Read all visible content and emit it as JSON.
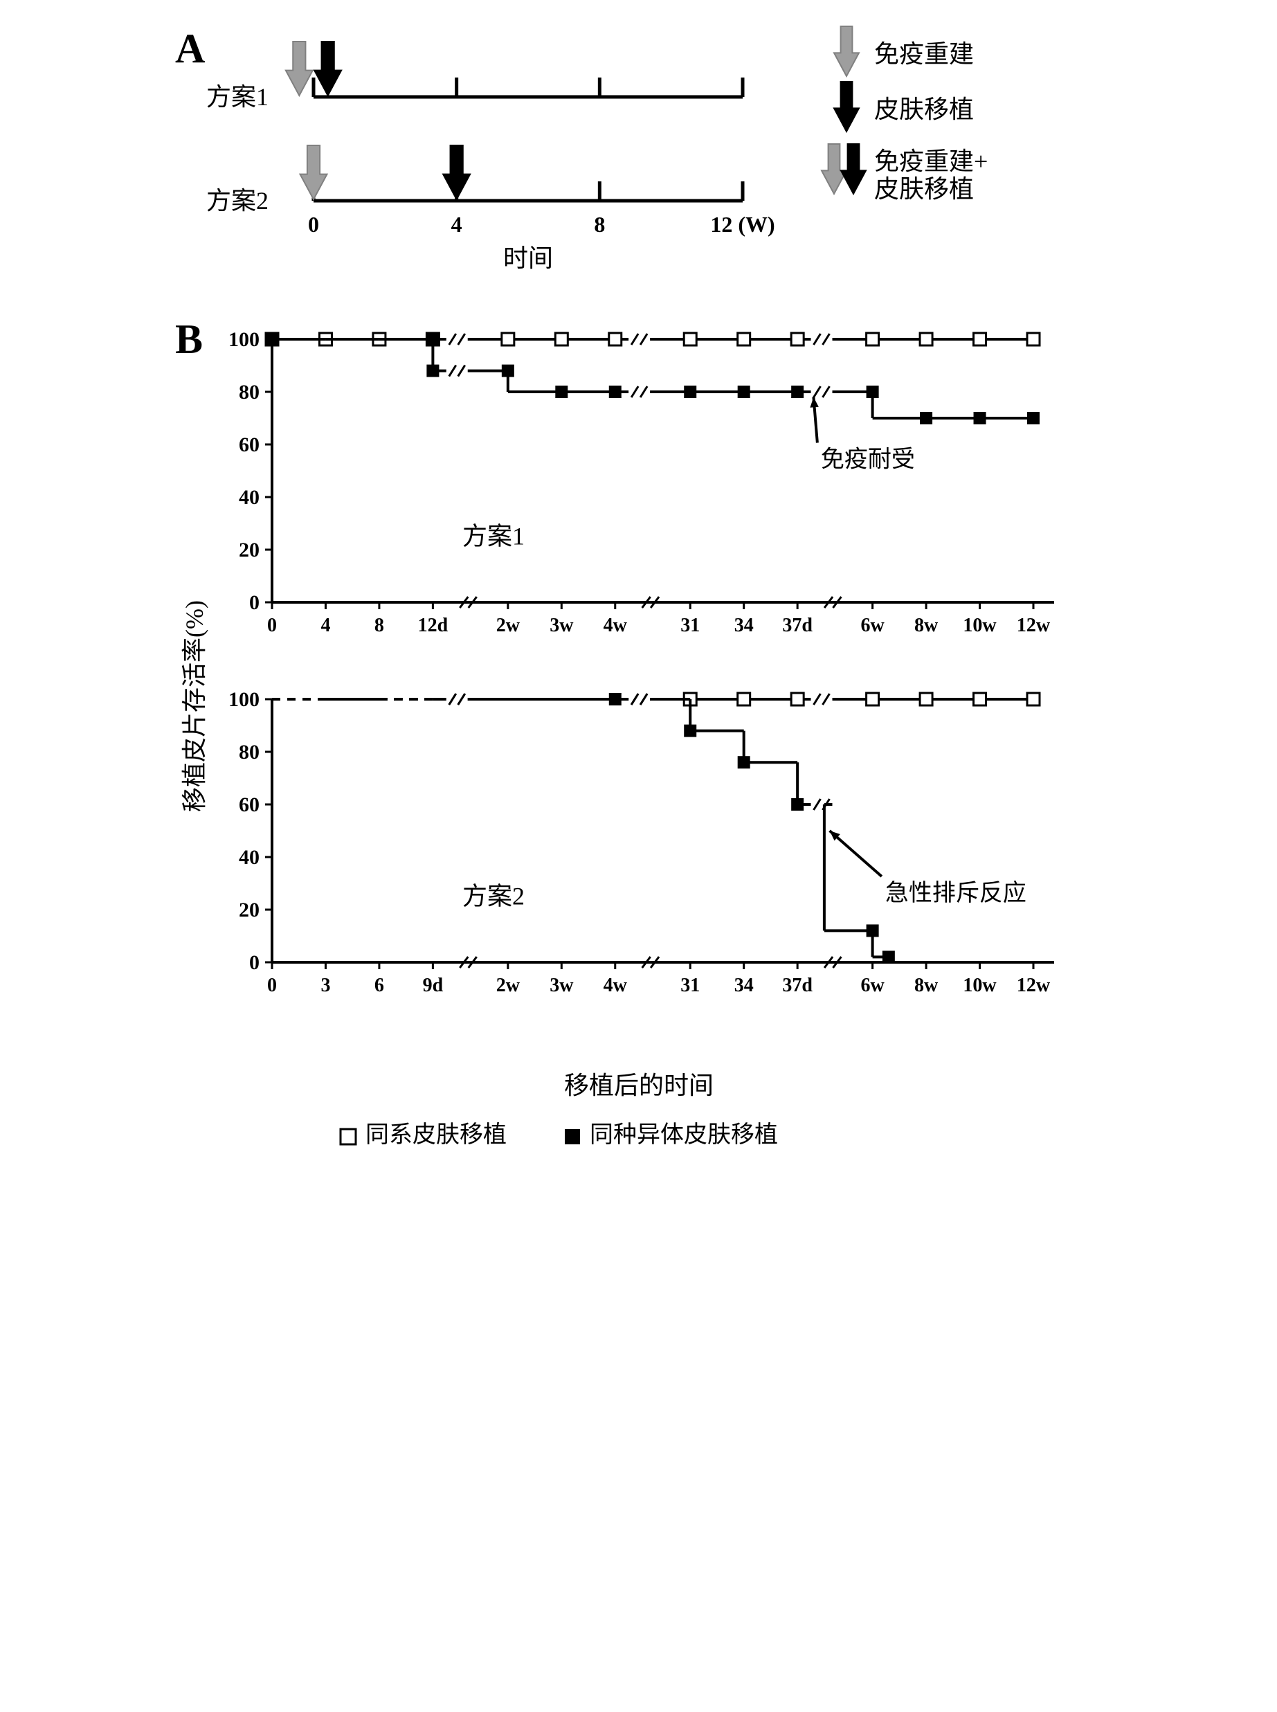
{
  "panelA": {
    "label": "A",
    "label_fontsize": 60,
    "row_labels": [
      "方案1",
      "方案2"
    ],
    "row_label_fontsize": 36,
    "x_ticks": [
      0,
      4,
      8,
      12
    ],
    "x_tick_labels": [
      "0",
      "4",
      "8",
      "12 (W)"
    ],
    "x_tick_fontsize": 32,
    "x_axis_label": "时间",
    "x_axis_label_fontsize": 36,
    "timeline_color": "#000000",
    "timeline_width": 5,
    "tick_height": 28,
    "arrow_defs": {
      "immune": {
        "color_fill": "#9e9e9e",
        "color_stroke": "#808080",
        "label": "免疫重建"
      },
      "skin": {
        "color_fill": "#000000",
        "color_stroke": "#000000",
        "label": "皮肤移植"
      },
      "both": {
        "label": "免疫重建+\n皮肤移植"
      }
    },
    "legend_fontsize": 36,
    "row1_arrows": [
      {
        "type": "immune",
        "x": -0.4
      },
      {
        "type": "skin",
        "x": 0.4
      }
    ],
    "row2_arrows": [
      {
        "type": "immune",
        "x": 0
      },
      {
        "type": "skin",
        "x": 4
      }
    ]
  },
  "panelB": {
    "label": "B",
    "label_fontsize": 60,
    "y_label": "移植皮片存活率(%)",
    "y_label_fontsize": 36,
    "x_label": "移植后的时间",
    "x_label_fontsize": 36,
    "chart1": {
      "title": "方案1",
      "title_fontsize": 36,
      "x_tick_labels": [
        "0",
        "4",
        "8",
        "12d",
        "2w",
        "3w",
        "4w",
        "31",
        "34",
        "37d",
        "6w",
        "8w",
        "10w",
        "12w"
      ],
      "x_tick_fontsize": 28,
      "y_ticks": [
        0,
        20,
        40,
        60,
        80,
        100
      ],
      "y_tick_fontsize": 30,
      "breaks_after_index": [
        3,
        6,
        9
      ],
      "syngeneic": {
        "marker": "open-square",
        "marker_size": 18,
        "line_color": "#000000",
        "line_width": 4,
        "dashed_until_index": null,
        "points": [
          [
            0,
            100
          ],
          [
            1,
            100
          ],
          [
            2,
            100
          ],
          [
            3,
            100
          ],
          [
            4,
            100
          ],
          [
            5,
            100
          ],
          [
            6,
            100
          ],
          [
            7,
            100
          ],
          [
            8,
            100
          ],
          [
            9,
            100
          ],
          [
            10,
            100
          ],
          [
            11,
            100
          ],
          [
            12,
            100
          ],
          [
            13,
            100
          ]
        ]
      },
      "allogeneic": {
        "marker": "filled-square",
        "marker_size": 18,
        "line_color": "#000000",
        "line_width": 4,
        "points": [
          [
            0,
            100
          ],
          [
            1,
            100
          ],
          [
            2,
            100
          ],
          [
            3,
            100
          ],
          [
            3,
            88
          ],
          [
            4,
            88
          ],
          [
            4,
            80
          ],
          [
            5,
            80
          ],
          [
            6,
            80
          ],
          [
            7,
            80
          ],
          [
            8,
            80
          ],
          [
            9,
            80
          ],
          [
            10,
            80
          ],
          [
            10,
            70
          ],
          [
            11,
            70
          ],
          [
            12,
            70
          ],
          [
            13,
            70
          ]
        ],
        "marker_points": [
          [
            0,
            100
          ],
          [
            3,
            100
          ],
          [
            3,
            88
          ],
          [
            4,
            88
          ],
          [
            5,
            80
          ],
          [
            6,
            80
          ],
          [
            7,
            80
          ],
          [
            8,
            80
          ],
          [
            9,
            80
          ],
          [
            10,
            80
          ],
          [
            11,
            70
          ],
          [
            12,
            70
          ],
          [
            13,
            70
          ]
        ]
      },
      "annotation": {
        "text": "免疫耐受",
        "at_index": 9.5,
        "at_y": 58,
        "arrow_to_index": 9.3,
        "arrow_to_y": 78,
        "fontsize": 34
      }
    },
    "chart2": {
      "title": "方案2",
      "title_fontsize": 36,
      "x_tick_labels": [
        "0",
        "3",
        "6",
        "9d",
        "2w",
        "3w",
        "4w",
        "31",
        "34",
        "37d",
        "6w",
        "8w",
        "10w",
        "12w"
      ],
      "x_tick_fontsize": 28,
      "y_ticks": [
        0,
        20,
        40,
        60,
        80,
        100
      ],
      "y_tick_fontsize": 30,
      "breaks_after_index": [
        3,
        6,
        9
      ],
      "syngeneic": {
        "marker": "open-square",
        "marker_size": 18,
        "line_color": "#000000",
        "line_width": 4,
        "dashed_until_index": 6,
        "points": [
          [
            0,
            100
          ],
          [
            1,
            100
          ],
          [
            2,
            100
          ],
          [
            3,
            100
          ],
          [
            4,
            100
          ],
          [
            5,
            100
          ],
          [
            6,
            100
          ],
          [
            7,
            100
          ],
          [
            8,
            100
          ],
          [
            9,
            100
          ],
          [
            10,
            100
          ],
          [
            11,
            100
          ],
          [
            12,
            100
          ],
          [
            13,
            100
          ]
        ],
        "marker_points": [
          [
            7,
            100
          ],
          [
            8,
            100
          ],
          [
            9,
            100
          ],
          [
            10,
            100
          ],
          [
            11,
            100
          ],
          [
            12,
            100
          ],
          [
            13,
            100
          ]
        ]
      },
      "allogeneic": {
        "marker": "filled-square",
        "marker_size": 18,
        "line_color": "#000000",
        "line_width": 4,
        "dashed_until_index": 6,
        "points": [
          [
            0,
            100
          ],
          [
            6,
            100
          ],
          [
            7,
            100
          ],
          [
            7,
            88
          ],
          [
            8,
            88
          ],
          [
            8,
            76
          ],
          [
            9,
            76
          ],
          [
            9,
            60
          ],
          [
            9.5,
            60
          ],
          [
            9.5,
            12
          ],
          [
            10,
            12
          ],
          [
            10,
            2
          ],
          [
            10.3,
            2
          ]
        ],
        "marker_points": [
          [
            6,
            100
          ],
          [
            7,
            88
          ],
          [
            8,
            76
          ],
          [
            9,
            60
          ],
          [
            10,
            12
          ],
          [
            10.3,
            2
          ]
        ]
      },
      "annotation": {
        "text": "急性排斥反应",
        "at_index": 10.3,
        "at_y": 30,
        "arrow_to_index": 9.6,
        "arrow_to_y": 50,
        "fontsize": 34
      }
    },
    "legend": {
      "items": [
        {
          "marker": "open-square",
          "label": "同系皮肤移植"
        },
        {
          "marker": "filled-square",
          "label": "同种异体皮肤移植"
        }
      ],
      "fontsize": 34,
      "marker_size": 22
    }
  },
  "colors": {
    "black": "#000000",
    "white": "#ffffff",
    "grey_arrow": "#9e9e9e"
  }
}
